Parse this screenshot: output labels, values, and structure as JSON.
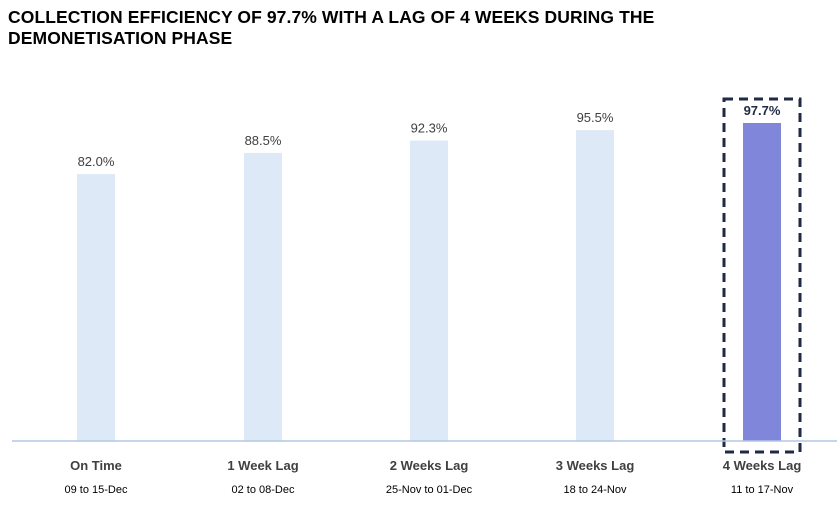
{
  "page": {
    "title_line1": "COLLECTION EFFICIENCY OF 97.7% WITH A LAG OF 4 WEEKS DURING THE",
    "title_line2": "DEMONETISATION PHASE"
  },
  "chart_data": {
    "type": "bar",
    "title": "COLLECTION EFFICIENCY OF 97.7% WITH A LAG OF 4 WEEKS DURING THE DEMONETISATION PHASE",
    "xlabel": "",
    "ylabel": "",
    "categories": [
      "On Time",
      "1 Week Lag",
      "2 Weeks Lag",
      "3 Weeks Lag",
      "4 Weeks Lag"
    ],
    "sublabels": [
      "09 to 15-Dec",
      "02 to 08-Dec",
      "25-Nov to 01-Dec",
      "18 to 24-Nov",
      "11 to 17-Nov"
    ],
    "values": [
      82.0,
      88.5,
      92.3,
      95.5,
      97.7
    ],
    "data_labels": [
      "82.0%",
      "88.5%",
      "92.3%",
      "95.5%",
      "97.7%"
    ],
    "ylim": [
      0,
      100
    ],
    "grid": false,
    "highlight_index": 4,
    "colors": {
      "bar": "#dde9f7",
      "highlight_bar": "#8087db",
      "highlight_box": "#1f2a44",
      "axis": "#b3c9e3",
      "label": "#404040",
      "highlight_label": "#1f2a44"
    }
  }
}
